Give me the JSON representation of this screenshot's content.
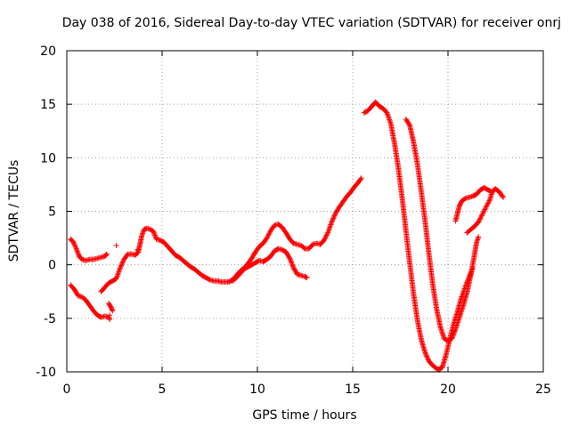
{
  "chart_data": {
    "type": "scatter",
    "title": "Day 038 of 2016, Sidereal Day-to-day VTEC variation (SDTVAR) for receiver onrj",
    "xlabel": "GPS time / hours",
    "ylabel": "SDTVAR / TECUs",
    "xlim": [
      0,
      25
    ],
    "ylim": [
      -10,
      20
    ],
    "xticks": [
      "0",
      "5",
      "10",
      "15",
      "20",
      "25"
    ],
    "yticks": [
      "20",
      "15",
      "10",
      "5",
      "0",
      "-5",
      "-10"
    ],
    "grid": true,
    "marker": "+",
    "color": "#ff0000",
    "series": [
      {
        "segments": [
          [
            [
              0.2,
              2.4
            ],
            [
              0.35,
              2.1
            ],
            [
              0.5,
              1.5
            ],
            [
              0.65,
              0.8
            ],
            [
              0.8,
              0.5
            ],
            [
              1.0,
              0.4
            ],
            [
              1.2,
              0.5
            ],
            [
              1.4,
              0.5
            ],
            [
              1.6,
              0.6
            ],
            [
              1.8,
              0.7
            ],
            [
              2.0,
              0.8
            ],
            [
              2.1,
              1.0
            ]
          ],
          [
            [
              0.2,
              -1.9
            ],
            [
              0.4,
              -2.3
            ],
            [
              0.6,
              -2.9
            ],
            [
              0.8,
              -3.0
            ],
            [
              1.0,
              -3.3
            ],
            [
              1.2,
              -3.8
            ],
            [
              1.4,
              -4.3
            ],
            [
              1.6,
              -4.7
            ],
            [
              1.8,
              -4.9
            ],
            [
              2.0,
              -4.8
            ],
            [
              2.2,
              -4.9
            ],
            [
              2.25,
              -5.1
            ]
          ],
          [
            [
              2.2,
              -3.6
            ],
            [
              2.3,
              -3.9
            ],
            [
              2.4,
              -4.3
            ]
          ],
          [
            [
              1.8,
              -2.5
            ],
            [
              2.0,
              -2.1
            ],
            [
              2.2,
              -1.7
            ],
            [
              2.4,
              -1.5
            ],
            [
              2.6,
              -1.3
            ],
            [
              2.8,
              -0.3
            ],
            [
              3.0,
              0.5
            ],
            [
              3.2,
              1.0
            ],
            [
              3.4,
              1.0
            ],
            [
              3.6,
              0.9
            ],
            [
              3.75,
              1.2
            ],
            [
              3.85,
              2.0
            ],
            [
              3.95,
              2.8
            ],
            [
              4.05,
              3.3
            ],
            [
              4.2,
              3.4
            ],
            [
              4.4,
              3.3
            ],
            [
              4.55,
              3.1
            ],
            [
              4.7,
              2.4
            ],
            [
              4.9,
              2.3
            ],
            [
              5.1,
              2.1
            ],
            [
              5.3,
              1.7
            ],
            [
              5.5,
              1.3
            ],
            [
              5.7,
              0.9
            ],
            [
              5.9,
              0.7
            ],
            [
              6.1,
              0.4
            ],
            [
              6.3,
              0.1
            ],
            [
              6.5,
              -0.2
            ],
            [
              6.7,
              -0.4
            ],
            [
              6.9,
              -0.7
            ],
            [
              7.1,
              -1.0
            ],
            [
              7.3,
              -1.2
            ],
            [
              7.5,
              -1.4
            ],
            [
              7.7,
              -1.5
            ],
            [
              7.9,
              -1.5
            ],
            [
              8.1,
              -1.6
            ],
            [
              8.3,
              -1.6
            ],
            [
              8.5,
              -1.6
            ],
            [
              8.7,
              -1.4
            ],
            [
              8.9,
              -1.0
            ],
            [
              9.1,
              -0.6
            ],
            [
              9.3,
              -0.3
            ],
            [
              9.5,
              0.1
            ],
            [
              9.7,
              0.6
            ],
            [
              9.9,
              1.2
            ],
            [
              10.1,
              1.7
            ],
            [
              10.3,
              2.0
            ],
            [
              10.5,
              2.5
            ],
            [
              10.7,
              3.2
            ],
            [
              10.9,
              3.7
            ],
            [
              11.1,
              3.8
            ],
            [
              11.3,
              3.5
            ],
            [
              11.5,
              3.0
            ],
            [
              11.7,
              2.4
            ],
            [
              11.9,
              2.0
            ],
            [
              12.1,
              1.9
            ],
            [
              12.3,
              1.8
            ],
            [
              12.5,
              1.5
            ],
            [
              12.7,
              1.5
            ],
            [
              12.9,
              1.9
            ],
            [
              13.1,
              2.0
            ],
            [
              13.3,
              1.9
            ],
            [
              13.5,
              2.3
            ],
            [
              13.7,
              3.0
            ],
            [
              13.9,
              4.0
            ],
            [
              14.1,
              4.8
            ],
            [
              14.3,
              5.4
            ],
            [
              14.5,
              5.9
            ],
            [
              14.7,
              6.4
            ],
            [
              14.9,
              6.8
            ],
            [
              15.1,
              7.3
            ],
            [
              15.3,
              7.7
            ],
            [
              15.45,
              8.1
            ]
          ],
          [
            [
              8.7,
              -1.5
            ],
            [
              8.9,
              -1.2
            ],
            [
              9.1,
              -0.8
            ],
            [
              9.3,
              -0.4
            ],
            [
              9.5,
              -0.2
            ],
            [
              9.7,
              0.0
            ],
            [
              9.9,
              0.2
            ],
            [
              10.1,
              0.4
            ],
            [
              10.3,
              0.3
            ],
            [
              10.5,
              0.5
            ],
            [
              10.7,
              0.8
            ],
            [
              10.9,
              1.3
            ],
            [
              11.1,
              1.5
            ],
            [
              11.3,
              1.4
            ],
            [
              11.5,
              1.2
            ],
            [
              11.7,
              0.6
            ],
            [
              11.9,
              -0.3
            ],
            [
              12.1,
              -0.9
            ],
            [
              12.3,
              -1.0
            ],
            [
              12.5,
              -1.1
            ],
            [
              12.6,
              -1.2
            ]
          ],
          [
            [
              15.6,
              14.2
            ],
            [
              15.8,
              14.4
            ],
            [
              16.0,
              14.8
            ],
            [
              16.2,
              15.2
            ],
            [
              16.4,
              14.8
            ],
            [
              16.6,
              14.6
            ],
            [
              16.8,
              14.2
            ],
            [
              17.0,
              13.2
            ],
            [
              17.2,
              11.3
            ],
            [
              17.4,
              9.0
            ],
            [
              17.6,
              6.2
            ],
            [
              17.8,
              3.1
            ],
            [
              18.0,
              0.1
            ],
            [
              18.2,
              -2.8
            ],
            [
              18.4,
              -5.2
            ],
            [
              18.6,
              -7.0
            ],
            [
              18.8,
              -8.2
            ],
            [
              19.0,
              -9.0
            ],
            [
              19.2,
              -9.4
            ],
            [
              19.4,
              -9.7
            ],
            [
              19.55,
              -9.8
            ]
          ],
          [
            [
              17.8,
              13.6
            ],
            [
              18.0,
              13.0
            ],
            [
              18.2,
              11.4
            ],
            [
              18.4,
              9.4
            ],
            [
              18.6,
              6.8
            ],
            [
              18.8,
              4.1
            ],
            [
              19.0,
              1.0
            ],
            [
              19.2,
              -1.8
            ],
            [
              19.4,
              -4.1
            ],
            [
              19.6,
              -5.8
            ],
            [
              19.8,
              -6.9
            ],
            [
              20.0,
              -7.1
            ],
            [
              20.2,
              -6.9
            ],
            [
              20.4,
              -6.0
            ],
            [
              20.6,
              -4.9
            ],
            [
              20.8,
              -3.8
            ],
            [
              21.0,
              -2.6
            ],
            [
              21.2,
              -0.9
            ],
            [
              21.4,
              1.0
            ],
            [
              21.5,
              2.1
            ],
            [
              21.6,
              2.6
            ]
          ],
          [
            [
              19.5,
              -9.8
            ],
            [
              19.7,
              -9.6
            ],
            [
              19.9,
              -8.4
            ],
            [
              20.1,
              -6.9
            ],
            [
              20.3,
              -5.5
            ],
            [
              20.5,
              -4.4
            ],
            [
              20.7,
              -3.1
            ],
            [
              20.9,
              -2.1
            ],
            [
              21.1,
              -1.2
            ],
            [
              21.3,
              -0.3
            ]
          ],
          [
            [
              20.4,
              4.1
            ],
            [
              20.5,
              4.8
            ],
            [
              20.6,
              5.5
            ],
            [
              20.7,
              5.9
            ],
            [
              20.9,
              6.2
            ],
            [
              21.1,
              6.3
            ],
            [
              21.3,
              6.4
            ],
            [
              21.5,
              6.6
            ],
            [
              21.7,
              7.0
            ],
            [
              21.9,
              7.2
            ],
            [
              22.1,
              7.0
            ],
            [
              22.3,
              6.8
            ],
            [
              22.5,
              7.1
            ],
            [
              22.7,
              6.8
            ],
            [
              22.9,
              6.3
            ]
          ],
          [
            [
              21.0,
              3.0
            ],
            [
              21.2,
              3.3
            ],
            [
              21.4,
              3.6
            ],
            [
              21.6,
              4.0
            ],
            [
              21.8,
              4.7
            ],
            [
              22.0,
              5.4
            ],
            [
              22.2,
              6.1
            ],
            [
              22.3,
              6.7
            ],
            [
              22.4,
              7.0
            ]
          ],
          [
            [
              2.6,
              1.8
            ],
            [
              3.7,
              1.4
            ],
            [
              2.25,
              -4.7
            ]
          ]
        ]
      }
    ]
  }
}
